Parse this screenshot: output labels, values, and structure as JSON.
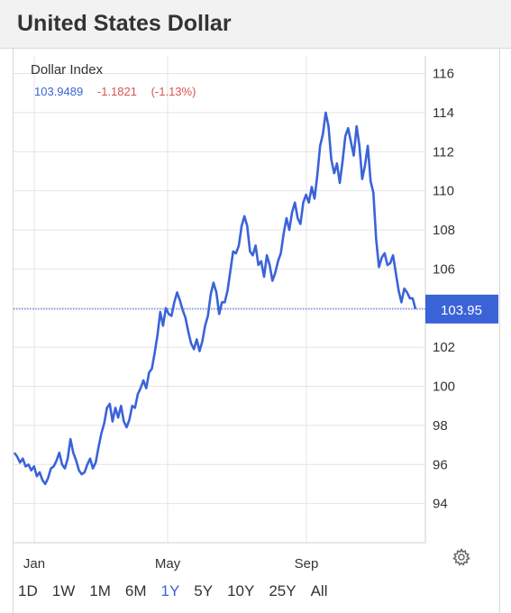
{
  "header": {
    "title": "United States Dollar"
  },
  "legend": {
    "name": "Dollar Index",
    "price": "103.9489",
    "change": "-1.1821",
    "change_pct": "(-1.13%)"
  },
  "last_label": "103.95",
  "ranges": [
    "1D",
    "1W",
    "1M",
    "6M",
    "1Y",
    "5Y",
    "10Y",
    "25Y",
    "All"
  ],
  "active_range": "1Y",
  "colors": {
    "line": "#3b63d8",
    "accent": "#3b63d8",
    "negative": "#d9534f",
    "grid": "#e4e4e4"
  },
  "icons": {
    "settings": "gear-icon"
  },
  "chart_data": {
    "type": "line",
    "x_tick_labels": [
      "Jan",
      "May",
      "Sep"
    ],
    "y_ticks": [
      94,
      96,
      98,
      100,
      102,
      104,
      106,
      108,
      110,
      112,
      114,
      116
    ],
    "ylim": [
      92,
      116.9
    ],
    "grid": true,
    "series": [
      {
        "values": [
          96.6,
          96.4,
          96.1,
          96.3,
          95.9,
          96.0,
          95.7,
          95.9,
          95.4,
          95.6,
          95.2,
          95.0,
          95.3,
          95.8,
          95.9,
          96.2,
          96.6,
          96.0,
          95.8,
          96.3,
          97.3,
          96.6,
          96.2,
          95.7,
          95.5,
          95.6,
          96.0,
          96.3,
          95.8,
          96.1,
          96.9,
          97.6,
          98.1,
          98.9,
          99.1,
          98.2,
          98.9,
          98.4,
          99.0,
          98.2,
          97.9,
          98.3,
          99.0,
          98.9,
          99.6,
          99.9,
          100.3,
          99.9,
          100.7,
          100.9,
          101.7,
          102.6,
          103.8,
          103.1,
          104.0,
          103.7,
          103.6,
          104.3,
          104.8,
          104.4,
          103.9,
          103.5,
          102.8,
          102.2,
          101.9,
          102.4,
          101.8,
          102.3,
          103.1,
          103.6,
          104.7,
          105.3,
          104.8,
          103.7,
          104.3,
          104.3,
          104.9,
          105.9,
          106.9,
          106.8,
          107.2,
          108.2,
          108.7,
          108.2,
          106.9,
          106.7,
          107.2,
          106.2,
          106.4,
          105.6,
          106.7,
          106.2,
          105.4,
          105.8,
          106.4,
          106.8,
          107.8,
          108.6,
          108.0,
          108.9,
          109.4,
          108.6,
          108.3,
          109.4,
          109.8,
          109.4,
          110.2,
          109.6,
          110.8,
          112.3,
          112.9,
          114.0,
          113.3,
          111.6,
          110.9,
          111.4,
          110.4,
          111.5,
          112.8,
          113.2,
          112.5,
          111.8,
          113.3,
          112.3,
          110.6,
          111.3,
          112.3,
          110.5,
          109.9,
          107.5,
          106.1,
          106.6,
          106.8,
          106.2,
          106.3,
          106.7,
          105.8,
          104.9,
          104.3,
          105.0,
          104.8,
          104.5,
          104.5,
          103.95
        ]
      }
    ]
  }
}
